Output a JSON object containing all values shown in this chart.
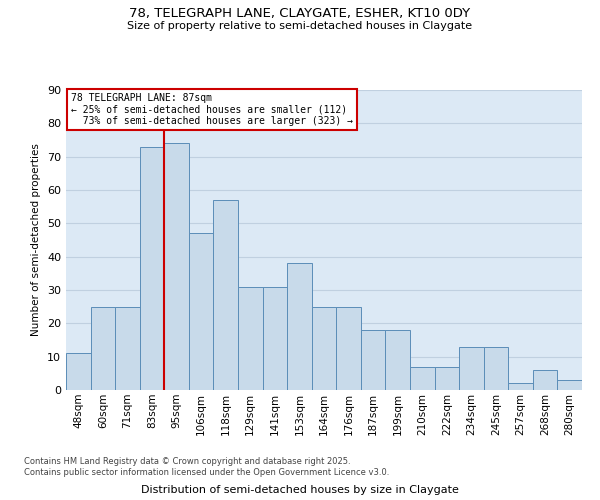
{
  "title_line1": "78, TELEGRAPH LANE, CLAYGATE, ESHER, KT10 0DY",
  "title_line2": "Size of property relative to semi-detached houses in Claygate",
  "xlabel": "Distribution of semi-detached houses by size in Claygate",
  "ylabel": "Number of semi-detached properties",
  "categories": [
    "48sqm",
    "60sqm",
    "71sqm",
    "83sqm",
    "95sqm",
    "106sqm",
    "118sqm",
    "129sqm",
    "141sqm",
    "153sqm",
    "164sqm",
    "176sqm",
    "187sqm",
    "199sqm",
    "210sqm",
    "222sqm",
    "234sqm",
    "245sqm",
    "257sqm",
    "268sqm",
    "280sqm"
  ],
  "values": [
    11,
    25,
    25,
    73,
    74,
    47,
    57,
    31,
    31,
    38,
    25,
    25,
    18,
    18,
    7,
    7,
    13,
    13,
    2,
    6,
    3
  ],
  "bar_color": "#c8daea",
  "bar_edge_color": "#5b8db8",
  "bar_edge_width": 0.7,
  "property_line_x": 3.5,
  "property_size": 87,
  "property_label": "78 TELEGRAPH LANE: 87sqm",
  "smaller_pct": 25,
  "smaller_count": 112,
  "larger_pct": 73,
  "larger_count": 323,
  "annotation_box_color": "#ffffff",
  "annotation_box_edge_color": "#cc0000",
  "vertical_line_color": "#cc0000",
  "grid_color": "#c0d0e0",
  "background_color": "#dce9f5",
  "ylim": [
    0,
    90
  ],
  "yticks": [
    0,
    10,
    20,
    30,
    40,
    50,
    60,
    70,
    80,
    90
  ],
  "footer_line1": "Contains HM Land Registry data © Crown copyright and database right 2025.",
  "footer_line2": "Contains public sector information licensed under the Open Government Licence v3.0."
}
